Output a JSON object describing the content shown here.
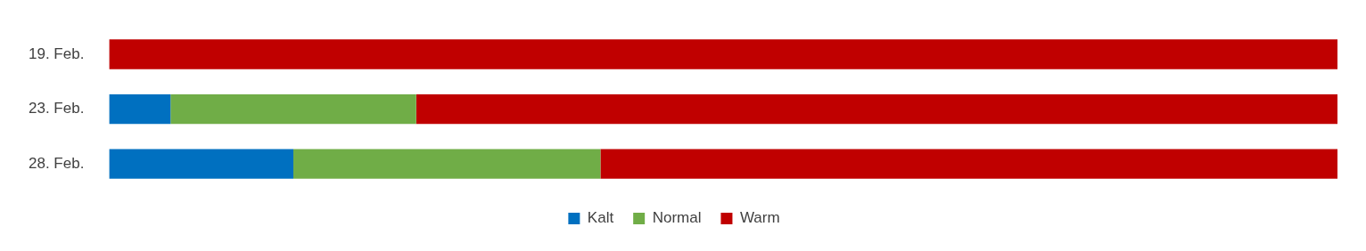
{
  "chart_data": {
    "type": "bar",
    "orientation": "horizontal",
    "stacked": true,
    "categories": [
      "19. Feb.",
      "23. Feb.",
      "28. Feb."
    ],
    "series": [
      {
        "name": "Kalt",
        "color": "#0070c0",
        "values": [
          0,
          5,
          15
        ]
      },
      {
        "name": "Normal",
        "color": "#70ad47",
        "values": [
          0,
          20,
          25
        ]
      },
      {
        "name": "Warm",
        "color": "#c00000",
        "values": [
          100,
          75,
          60
        ]
      }
    ],
    "xlim": [
      0,
      100
    ],
    "grid": false,
    "legend": "bottom",
    "tick_labels": "y"
  }
}
